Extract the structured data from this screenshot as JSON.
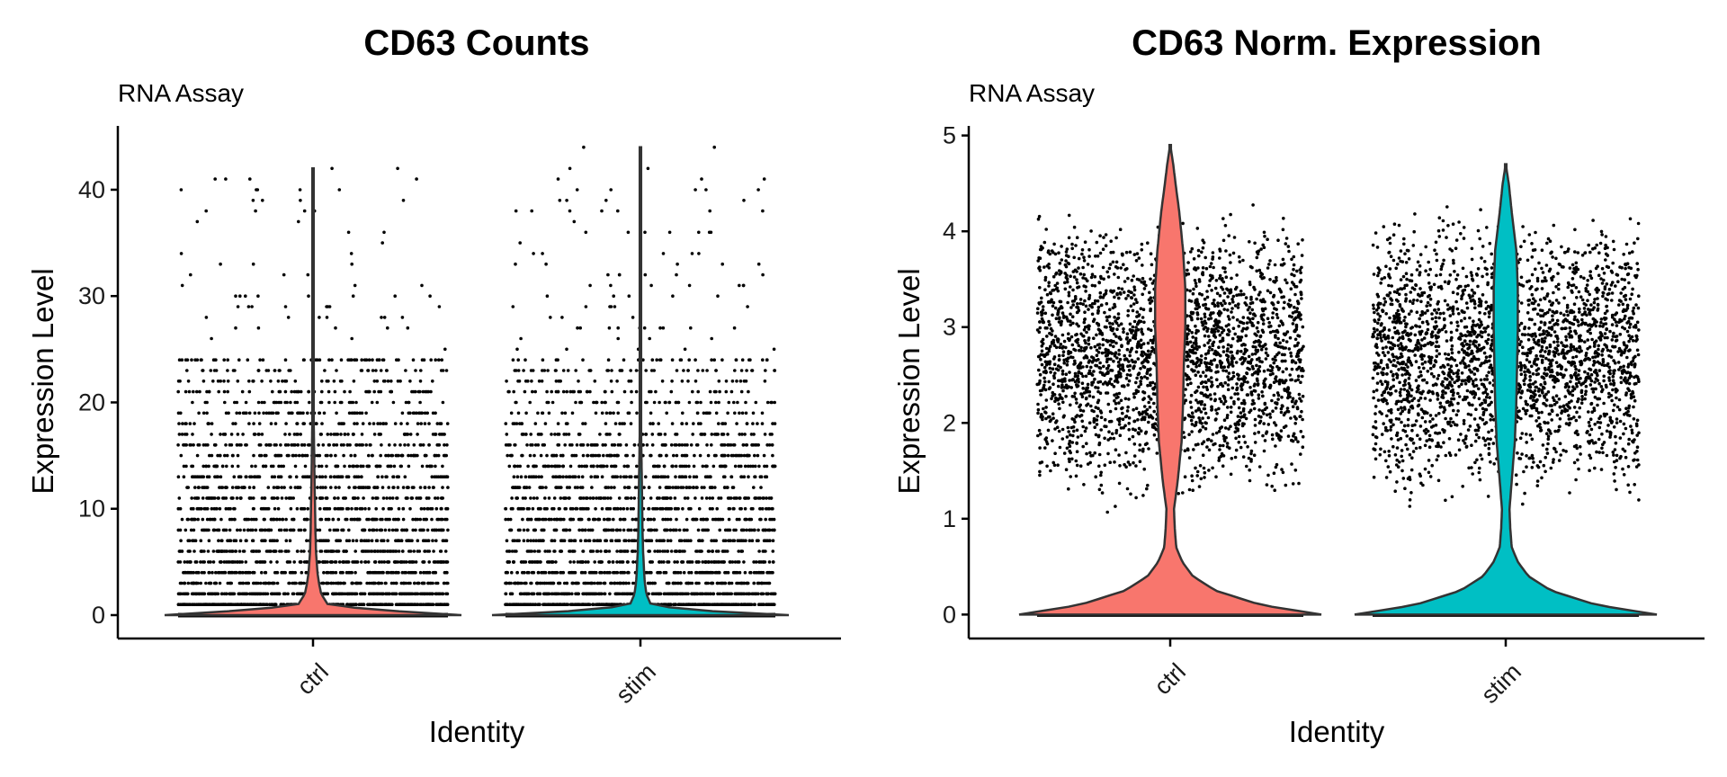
{
  "chart_data": [
    {
      "type": "violin",
      "title": "CD63 Counts",
      "subtitle": "RNA Assay",
      "xlabel": "Identity",
      "ylabel": "Expression Level",
      "categories": [
        "ctrl",
        "stim"
      ],
      "ylim": [
        -2.2,
        46
      ],
      "yticks": [
        0,
        10,
        20,
        30,
        40
      ],
      "integer_values": true,
      "series": [
        {
          "category": "ctrl",
          "color": "#F8766D",
          "max": 42,
          "density": [
            [
              0,
              1.0
            ],
            [
              0.5,
              0.4
            ],
            [
              1,
              0.1
            ],
            [
              2,
              0.055
            ],
            [
              3,
              0.04
            ],
            [
              4,
              0.03
            ],
            [
              6,
              0.02
            ],
            [
              8,
              0.016
            ],
            [
              10,
              0.014
            ],
            [
              12,
              0.011
            ],
            [
              15,
              0.008
            ],
            [
              18,
              0.005
            ],
            [
              20,
              0.003
            ],
            [
              22,
              0.0015
            ],
            [
              25,
              0.0008
            ],
            [
              30,
              0.0004
            ],
            [
              35,
              0.00025
            ],
            [
              40,
              0.0002
            ],
            [
              42,
              0.0
            ]
          ]
        },
        {
          "category": "stim",
          "color": "#00BFC4",
          "max": 44,
          "density": [
            [
              0,
              1.0
            ],
            [
              0.5,
              0.3
            ],
            [
              1,
              0.07
            ],
            [
              2,
              0.04
            ],
            [
              3,
              0.03
            ],
            [
              4,
              0.025
            ],
            [
              6,
              0.018
            ],
            [
              8,
              0.014
            ],
            [
              10,
              0.012
            ],
            [
              12,
              0.01
            ],
            [
              15,
              0.007
            ],
            [
              18,
              0.004
            ],
            [
              20,
              0.002
            ],
            [
              22,
              0.0012
            ],
            [
              25,
              0.0007
            ],
            [
              30,
              0.0004
            ],
            [
              35,
              0.00025
            ],
            [
              40,
              0.0002
            ],
            [
              44,
              0.0
            ]
          ]
        }
      ]
    },
    {
      "type": "violin",
      "title": "CD63 Norm. Expression",
      "subtitle": "RNA Assay",
      "xlabel": "Identity",
      "ylabel": "Expression Level",
      "categories": [
        "ctrl",
        "stim"
      ],
      "ylim": [
        -0.25,
        5.1
      ],
      "yticks": [
        0,
        1,
        2,
        3,
        4,
        5
      ],
      "integer_values": false,
      "series": [
        {
          "category": "ctrl",
          "color": "#F8766D",
          "max": 4.9,
          "density": [
            [
              0,
              1.0
            ],
            [
              0.1,
              0.6
            ],
            [
              0.25,
              0.3
            ],
            [
              0.4,
              0.15
            ],
            [
              0.55,
              0.08
            ],
            [
              0.7,
              0.04
            ],
            [
              0.9,
              0.03
            ],
            [
              1.1,
              0.025
            ],
            [
              1.4,
              0.05
            ],
            [
              1.8,
              0.075
            ],
            [
              2.2,
              0.085
            ],
            [
              2.6,
              0.09
            ],
            [
              3.0,
              0.1
            ],
            [
              3.4,
              0.1
            ],
            [
              3.8,
              0.085
            ],
            [
              4.2,
              0.06
            ],
            [
              4.5,
              0.035
            ],
            [
              4.7,
              0.02
            ],
            [
              4.9,
              0.0
            ]
          ]
        },
        {
          "category": "stim",
          "color": "#00BFC4",
          "max": 4.7,
          "density": [
            [
              0,
              1.0
            ],
            [
              0.1,
              0.6
            ],
            [
              0.25,
              0.3
            ],
            [
              0.4,
              0.15
            ],
            [
              0.55,
              0.08
            ],
            [
              0.7,
              0.04
            ],
            [
              0.9,
              0.03
            ],
            [
              1.1,
              0.025
            ],
            [
              1.4,
              0.04
            ],
            [
              1.8,
              0.06
            ],
            [
              2.2,
              0.07
            ],
            [
              2.6,
              0.075
            ],
            [
              3.0,
              0.08
            ],
            [
              3.4,
              0.08
            ],
            [
              3.8,
              0.07
            ],
            [
              4.2,
              0.04
            ],
            [
              4.5,
              0.02
            ],
            [
              4.7,
              0.0
            ]
          ]
        }
      ]
    }
  ]
}
